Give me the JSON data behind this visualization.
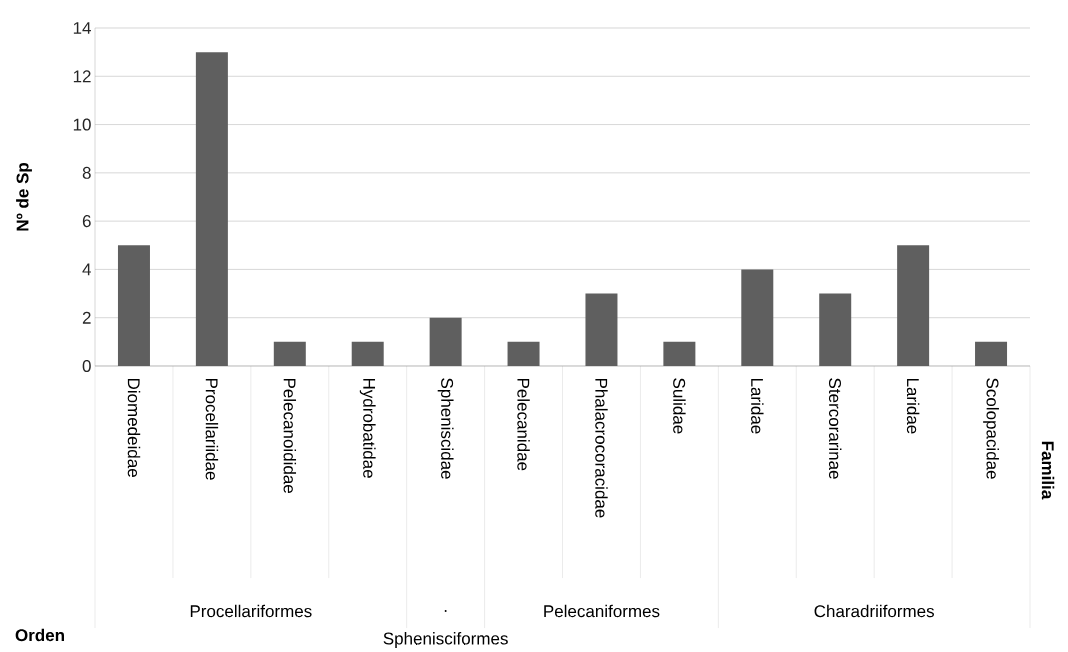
{
  "chart_data": {
    "type": "bar",
    "ylabel": "Nº de Sp",
    "categories": [
      "Diomedeidae",
      "Procellariidae",
      "Pelecanoididae",
      "Hydrobatidae",
      "Spheniscidae",
      "Pelecanidae",
      "Phalacrocoracidae",
      "Sulidae",
      "Laridae",
      "Stercorarinae",
      "Laridae",
      "Scolopacidae"
    ],
    "values": [
      5,
      13,
      1,
      1,
      2,
      1,
      3,
      1,
      4,
      3,
      5,
      1
    ],
    "color": "#5f5f5f",
    "ylim": [
      0,
      14
    ],
    "yticks": [
      0,
      2,
      4,
      6,
      8,
      10,
      12,
      14
    ],
    "grid": "y",
    "annotations": [
      "Procellariformes",
      ".",
      "Sphenisciformes",
      "Pelecaniformes",
      "Charadriiformes",
      "Orden",
      "Familia"
    ]
  }
}
